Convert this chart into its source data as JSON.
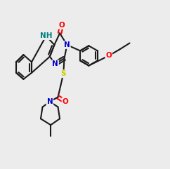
{
  "bg_color": "#ececec",
  "C": "#1a1a1a",
  "N": "#0000cd",
  "O": "#ff0000",
  "S": "#cccc00",
  "NH_color": "#008080",
  "lw": 1.5,
  "lw_thin": 1.2,
  "fontsize": 7.5
}
